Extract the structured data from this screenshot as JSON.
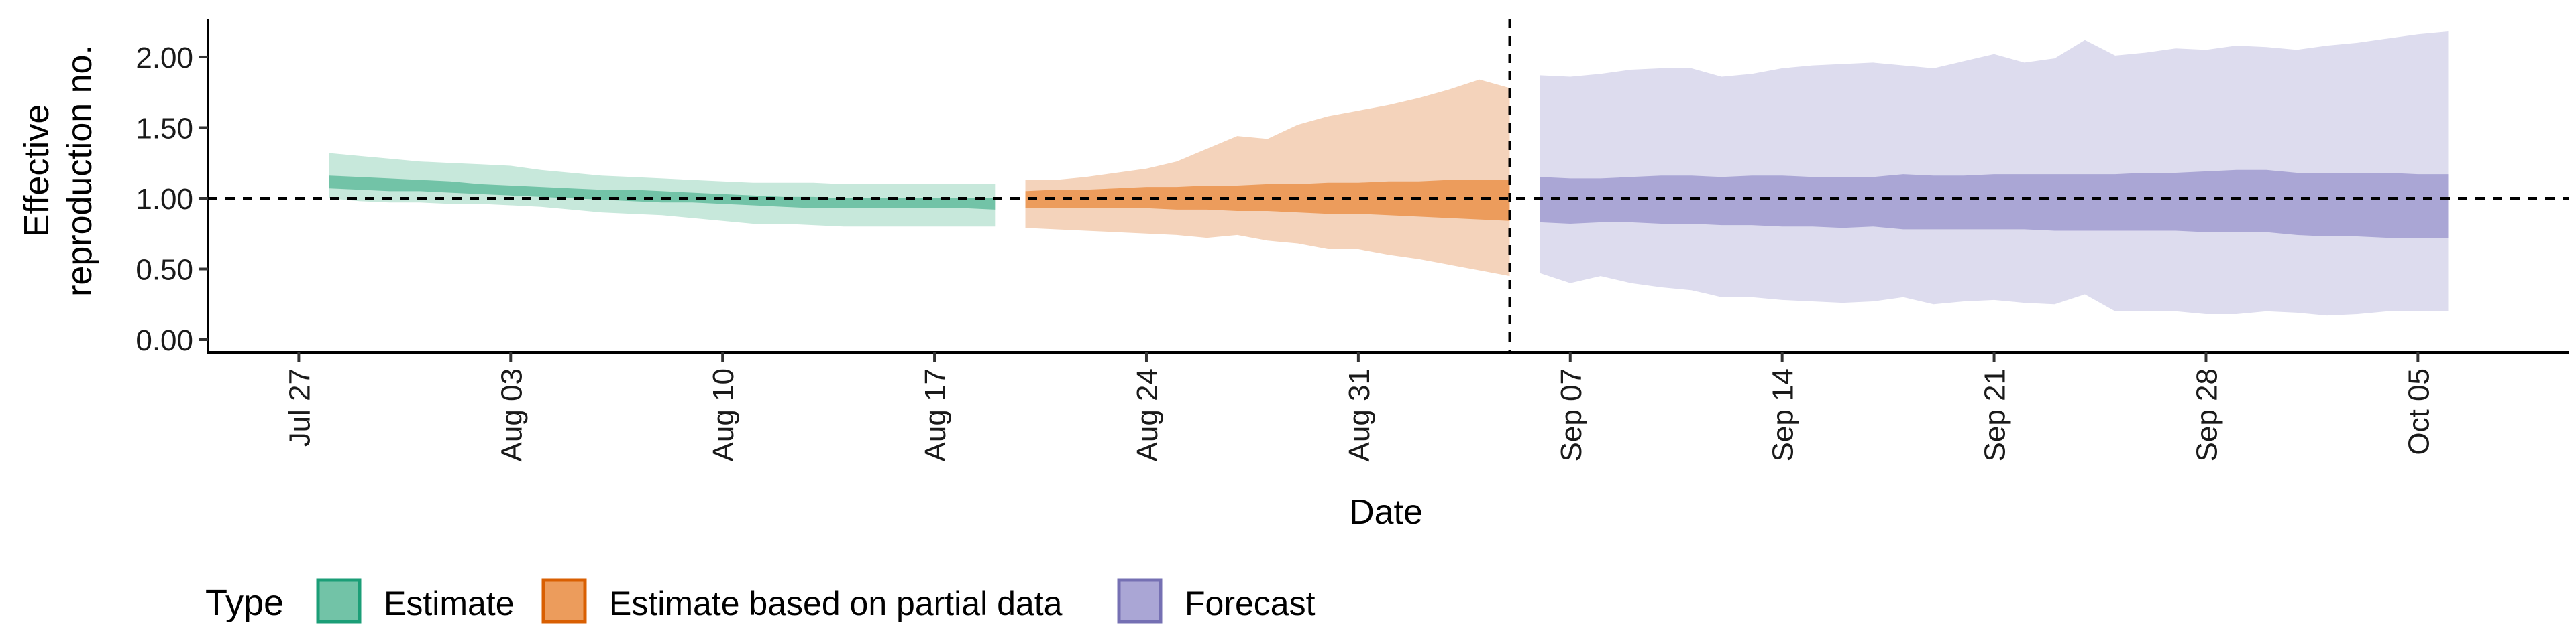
{
  "chart_data": {
    "type": "area",
    "title": "",
    "xlabel": "Date",
    "ylabel_lines": [
      "Effective",
      "reproduction no."
    ],
    "y_ticks": [
      0,
      0.5,
      1,
      1.5,
      2
    ],
    "y_tick_labels": [
      "0.00",
      "0.50",
      "1.00",
      "1.50",
      "2.00"
    ],
    "ylim": [
      -0.09,
      2.27
    ],
    "xlim": [
      "2020-07-24",
      "2020-10-10"
    ],
    "x_ticks": [
      "2020-07-27",
      "2020-08-03",
      "2020-08-10",
      "2020-08-17",
      "2020-08-24",
      "2020-08-31",
      "2020-09-07",
      "2020-09-14",
      "2020-09-21",
      "2020-09-28",
      "2020-10-05"
    ],
    "x_tick_labels": [
      "Jul 27",
      "Aug 03",
      "Aug 10",
      "Aug 17",
      "Aug 24",
      "Aug 31",
      "Sep 07",
      "Sep 14",
      "Sep 21",
      "Sep 28",
      "Oct 05"
    ],
    "reference_line_y": 1.0,
    "forecast_date_line": "2020-09-05",
    "legend": {
      "title": "Type",
      "position": "bottom",
      "items": [
        {
          "label": "Estimate",
          "fill": "#72c3a7",
          "border": "#1b9e77"
        },
        {
          "label": "Estimate based on partial data",
          "fill": "#ec9c5c",
          "border": "#d95f02"
        },
        {
          "label": "Forecast",
          "fill": "#aaa6d5",
          "border": "#7570b3"
        }
      ]
    },
    "series": [
      {
        "name": "Estimate",
        "outer_fill": "#c7e8db",
        "inner_fill": "#72c3a7",
        "x": [
          "2020-07-28",
          "2020-07-29",
          "2020-07-30",
          "2020-07-31",
          "2020-08-01",
          "2020-08-02",
          "2020-08-03",
          "2020-08-04",
          "2020-08-05",
          "2020-08-06",
          "2020-08-07",
          "2020-08-08",
          "2020-08-09",
          "2020-08-10",
          "2020-08-11",
          "2020-08-12",
          "2020-08-13",
          "2020-08-14",
          "2020-08-15",
          "2020-08-16",
          "2020-08-17",
          "2020-08-18",
          "2020-08-19"
        ],
        "lower90": [
          1.0,
          0.98,
          0.97,
          0.97,
          0.96,
          0.96,
          0.95,
          0.94,
          0.92,
          0.9,
          0.89,
          0.88,
          0.86,
          0.84,
          0.82,
          0.82,
          0.81,
          0.8,
          0.8,
          0.8,
          0.8,
          0.8,
          0.8
        ],
        "lower50": [
          1.07,
          1.06,
          1.05,
          1.05,
          1.04,
          1.03,
          1.02,
          1.01,
          1.0,
          0.99,
          0.98,
          0.97,
          0.97,
          0.96,
          0.95,
          0.94,
          0.93,
          0.93,
          0.93,
          0.93,
          0.93,
          0.93,
          0.92
        ],
        "upper50": [
          1.16,
          1.15,
          1.14,
          1.13,
          1.12,
          1.1,
          1.09,
          1.08,
          1.07,
          1.06,
          1.06,
          1.05,
          1.04,
          1.03,
          1.02,
          1.01,
          1.01,
          1.0,
          1.0,
          1.0,
          1.0,
          1.0,
          1.0
        ],
        "upper90": [
          1.32,
          1.3,
          1.28,
          1.26,
          1.25,
          1.24,
          1.23,
          1.2,
          1.18,
          1.16,
          1.15,
          1.14,
          1.13,
          1.12,
          1.11,
          1.11,
          1.11,
          1.1,
          1.1,
          1.1,
          1.1,
          1.1,
          1.1
        ]
      },
      {
        "name": "Estimate based on partial data",
        "outer_fill": "#f4d3bb",
        "inner_fill": "#ec9c5c",
        "x": [
          "2020-08-20",
          "2020-08-21",
          "2020-08-22",
          "2020-08-23",
          "2020-08-24",
          "2020-08-25",
          "2020-08-26",
          "2020-08-27",
          "2020-08-28",
          "2020-08-29",
          "2020-08-30",
          "2020-08-31",
          "2020-09-01",
          "2020-09-02",
          "2020-09-03",
          "2020-09-04",
          "2020-09-05"
        ],
        "lower90": [
          0.79,
          0.78,
          0.77,
          0.76,
          0.75,
          0.74,
          0.72,
          0.74,
          0.7,
          0.68,
          0.64,
          0.64,
          0.6,
          0.57,
          0.53,
          0.49,
          0.45
        ],
        "lower50": [
          0.93,
          0.93,
          0.93,
          0.93,
          0.93,
          0.92,
          0.92,
          0.91,
          0.91,
          0.9,
          0.89,
          0.89,
          0.88,
          0.87,
          0.86,
          0.85,
          0.84
        ],
        "upper50": [
          1.05,
          1.06,
          1.06,
          1.07,
          1.08,
          1.08,
          1.09,
          1.09,
          1.1,
          1.1,
          1.11,
          1.11,
          1.12,
          1.12,
          1.13,
          1.13,
          1.13
        ],
        "upper90": [
          1.13,
          1.13,
          1.15,
          1.18,
          1.21,
          1.26,
          1.35,
          1.44,
          1.42,
          1.52,
          1.58,
          1.62,
          1.66,
          1.71,
          1.77,
          1.84,
          1.78
        ]
      },
      {
        "name": "Forecast",
        "outer_fill": "#dddcee",
        "inner_fill": "#aaa6d5",
        "x": [
          "2020-09-06",
          "2020-09-07",
          "2020-09-08",
          "2020-09-09",
          "2020-09-10",
          "2020-09-11",
          "2020-09-12",
          "2020-09-13",
          "2020-09-14",
          "2020-09-15",
          "2020-09-16",
          "2020-09-17",
          "2020-09-18",
          "2020-09-19",
          "2020-09-20",
          "2020-09-21",
          "2020-09-22",
          "2020-09-23",
          "2020-09-24",
          "2020-09-25",
          "2020-09-26",
          "2020-09-27",
          "2020-09-28",
          "2020-09-29",
          "2020-09-30",
          "2020-10-01",
          "2020-10-02",
          "2020-10-03",
          "2020-10-04",
          "2020-10-05",
          "2020-10-06"
        ],
        "lower90": [
          0.47,
          0.4,
          0.45,
          0.4,
          0.37,
          0.35,
          0.3,
          0.3,
          0.28,
          0.27,
          0.26,
          0.27,
          0.3,
          0.25,
          0.27,
          0.28,
          0.26,
          0.25,
          0.32,
          0.2,
          0.2,
          0.2,
          0.18,
          0.18,
          0.2,
          0.19,
          0.17,
          0.18,
          0.2,
          0.2,
          0.2
        ],
        "lower50": [
          0.83,
          0.82,
          0.83,
          0.83,
          0.82,
          0.82,
          0.81,
          0.81,
          0.8,
          0.8,
          0.79,
          0.8,
          0.78,
          0.78,
          0.78,
          0.78,
          0.78,
          0.77,
          0.77,
          0.77,
          0.77,
          0.77,
          0.76,
          0.76,
          0.76,
          0.74,
          0.73,
          0.73,
          0.72,
          0.72,
          0.72
        ],
        "upper50": [
          1.15,
          1.14,
          1.14,
          1.15,
          1.16,
          1.16,
          1.15,
          1.16,
          1.16,
          1.15,
          1.15,
          1.15,
          1.17,
          1.16,
          1.16,
          1.17,
          1.17,
          1.17,
          1.17,
          1.17,
          1.18,
          1.18,
          1.19,
          1.2,
          1.2,
          1.18,
          1.18,
          1.18,
          1.18,
          1.17,
          1.17
        ],
        "upper90": [
          1.87,
          1.86,
          1.88,
          1.91,
          1.92,
          1.92,
          1.86,
          1.88,
          1.92,
          1.94,
          1.95,
          1.96,
          1.94,
          1.92,
          1.97,
          2.02,
          1.96,
          1.99,
          2.12,
          2.01,
          2.03,
          2.06,
          2.05,
          2.08,
          2.07,
          2.05,
          2.08,
          2.1,
          2.13,
          2.16,
          2.18
        ]
      }
    ]
  }
}
